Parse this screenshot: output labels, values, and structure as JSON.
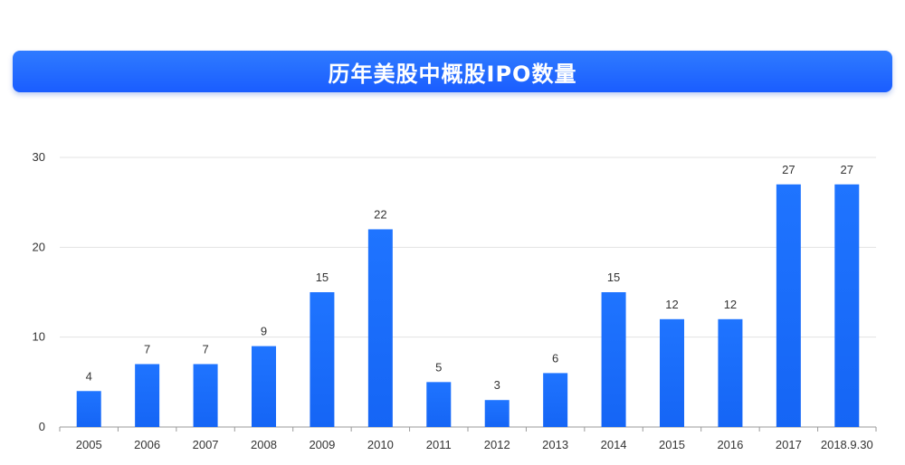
{
  "title": "历年美股中概股IPO数量",
  "chart_data": {
    "type": "bar",
    "categories": [
      "2005",
      "2006",
      "2007",
      "2008",
      "2009",
      "2010",
      "2011",
      "2012",
      "2013",
      "2014",
      "2015",
      "2016",
      "2017",
      "2018.9.30"
    ],
    "values": [
      4,
      7,
      7,
      9,
      15,
      22,
      5,
      3,
      6,
      15,
      12,
      12,
      27,
      27
    ],
    "title": "历年美股中概股IPO数量",
    "xlabel": "",
    "ylabel": "",
    "ylim": [
      0,
      30
    ],
    "yticks": [
      0,
      10,
      20,
      30
    ],
    "grid": true,
    "legend": "none",
    "bar_color": "#1565f5",
    "bar_color_top": "#1f74ff"
  }
}
